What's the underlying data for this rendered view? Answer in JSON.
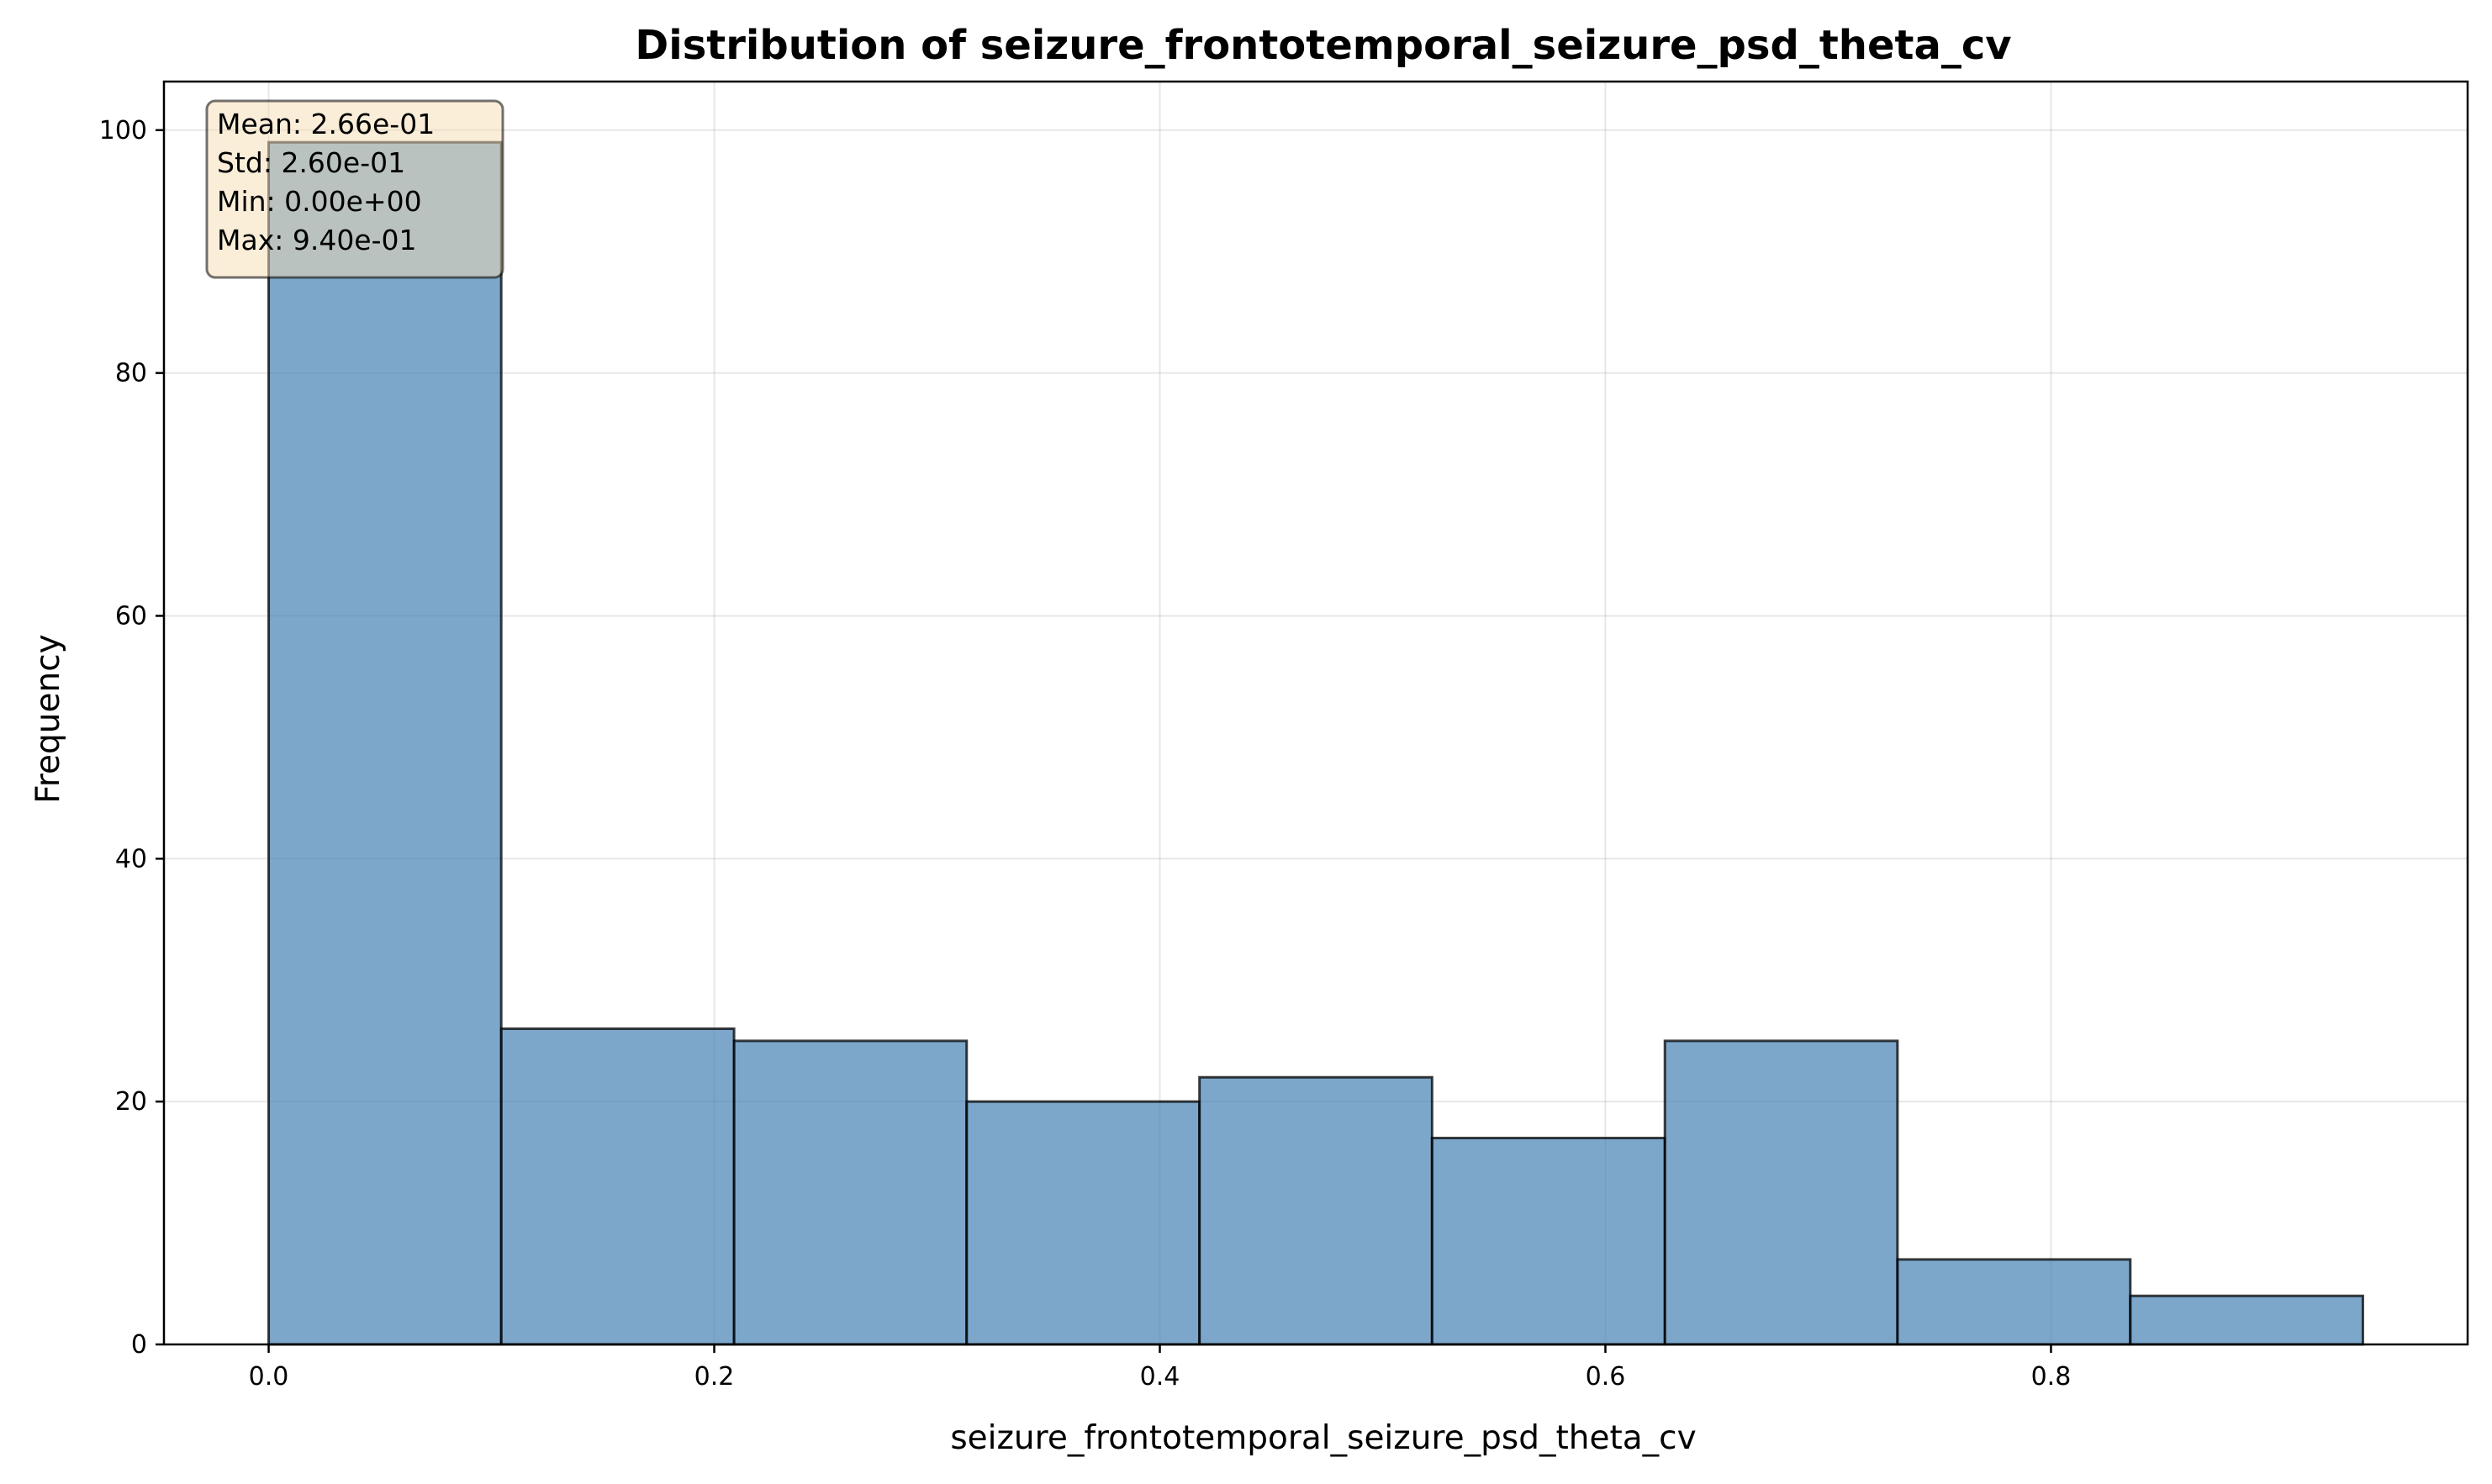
{
  "chart_data": {
    "type": "bar",
    "title": "Distribution of seizure_frontotemporal_seizure_psd_theta_cv",
    "xlabel": "seizure_frontotemporal_seizure_psd_theta_cv",
    "ylabel": "Frequency",
    "bins": [
      {
        "x0": 0.0,
        "x1": 0.1044,
        "count": 99
      },
      {
        "x0": 0.1044,
        "x1": 0.2089,
        "count": 26
      },
      {
        "x0": 0.2089,
        "x1": 0.3133,
        "count": 25
      },
      {
        "x0": 0.3133,
        "x1": 0.4178,
        "count": 20
      },
      {
        "x0": 0.4178,
        "x1": 0.5222,
        "count": 22
      },
      {
        "x0": 0.5222,
        "x1": 0.6267,
        "count": 17
      },
      {
        "x0": 0.6267,
        "x1": 0.7311,
        "count": 25
      },
      {
        "x0": 0.7311,
        "x1": 0.8356,
        "count": 7
      },
      {
        "x0": 0.8356,
        "x1": 0.94,
        "count": 4
      }
    ],
    "xlim": [
      -0.047,
      0.987
    ],
    "ylim": [
      0,
      104
    ],
    "xticks": [
      0.0,
      0.2,
      0.4,
      0.6,
      0.8
    ],
    "xtick_labels": [
      "0.0",
      "0.2",
      "0.4",
      "0.6",
      "0.8"
    ],
    "yticks": [
      0,
      20,
      40,
      60,
      80,
      100
    ],
    "ytick_labels": [
      "0",
      "20",
      "40",
      "60",
      "80",
      "100"
    ],
    "grid": true,
    "bar_color": "#4682b4",
    "bar_edge_color": "#000000",
    "stats_box": {
      "position": "top-left",
      "lines": [
        "Mean: 2.66e-01",
        "Std: 2.60e-01",
        "Min: 0.00e+00",
        "Max: 9.40e-01"
      ],
      "background": "#f5deb3"
    }
  }
}
